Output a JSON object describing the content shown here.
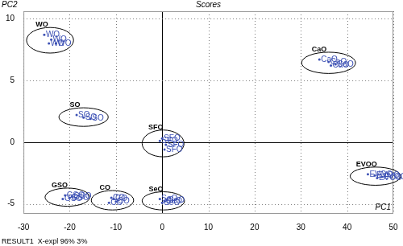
{
  "chart_data": {
    "type": "scatter",
    "title": "Scores",
    "x_label": "PC1",
    "y_label": "PC2",
    "annotations": [
      "RESULT1  X-expl 96% 3%"
    ],
    "color": "#3c50b4",
    "marker": "circle",
    "grid": true,
    "xlim": [
      -30,
      50
    ],
    "xticks": [
      -30,
      -20,
      -10,
      0,
      10,
      20,
      30,
      40,
      50
    ],
    "ylim": [
      -5.8,
      10.6
    ],
    "yticks": [
      -5,
      0,
      5,
      10
    ],
    "series": [
      {
        "name": "WO",
        "x": [
          -25.5,
          -24,
          -23,
          -24.5
        ],
        "values": [
          8.7,
          8.3,
          8.0,
          8.0
        ]
      },
      {
        "name": "CaO",
        "x": [
          34,
          36,
          37.5,
          36.5
        ],
        "values": [
          6.7,
          6.5,
          6.3,
          6.2
        ]
      },
      {
        "name": "SO",
        "x": [
          -18.5,
          -17,
          -15.5
        ],
        "values": [
          2.2,
          2.0,
          1.9
        ]
      },
      {
        "name": "SFO",
        "x": [
          0,
          0.8,
          -0.5,
          0.5
        ],
        "values": [
          0.3,
          -0.2,
          0.1,
          -0.6
        ]
      },
      {
        "name": "GSO",
        "x": [
          -21,
          -20,
          -21.5,
          -19.5
        ],
        "values": [
          -4.3,
          -4.5,
          -4.6,
          -4.4
        ]
      },
      {
        "name": "CO",
        "x": [
          -11,
          -10,
          -11.5,
          -10.5
        ],
        "values": [
          -4.5,
          -4.8,
          -4.9,
          -4.6
        ]
      },
      {
        "name": "SeO",
        "x": [
          -0.5,
          0.5,
          1,
          0
        ],
        "values": [
          -4.6,
          -4.8,
          -4.7,
          -4.9
        ]
      },
      {
        "name": "EVOO",
        "x": [
          44.5,
          46,
          47.5,
          46.5
        ],
        "values": [
          -2.6,
          -2.7,
          -2.8,
          -2.9
        ]
      }
    ]
  }
}
